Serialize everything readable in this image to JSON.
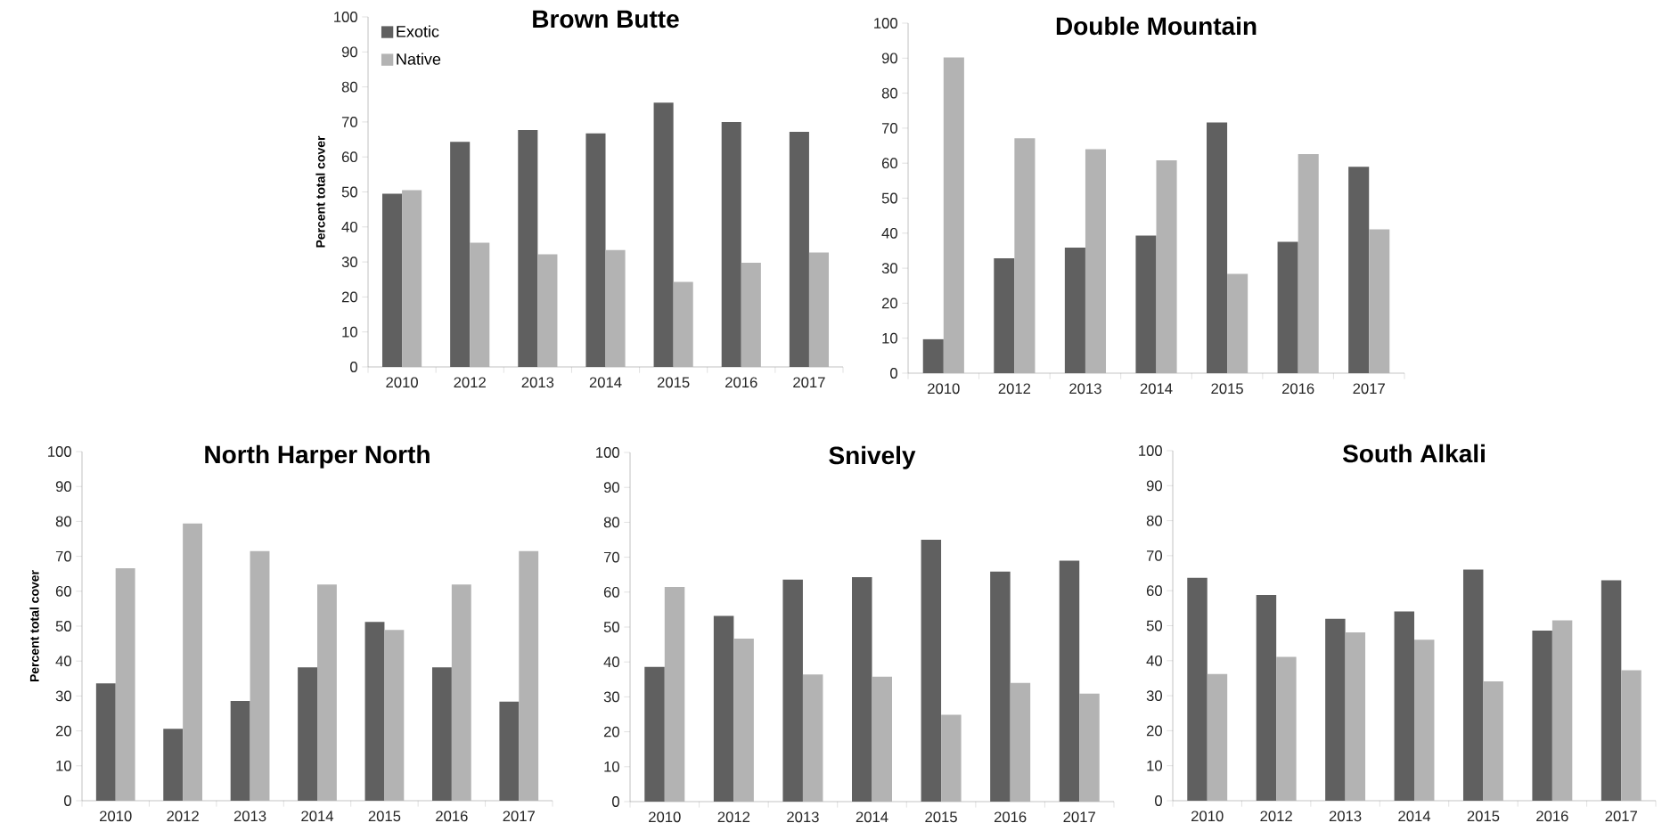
{
  "chart_data": [
    {
      "type": "bar",
      "title": "Brown Butte",
      "ylabel": "Percent total cover",
      "categories": [
        "2010",
        "2012",
        "2013",
        "2014",
        "2015",
        "2016",
        "2017"
      ],
      "ylim": [
        0,
        100
      ],
      "yticks": [
        0,
        10,
        20,
        30,
        40,
        50,
        60,
        70,
        80,
        90,
        100
      ],
      "legend": "top left",
      "series": [
        {
          "name": "Exotic",
          "color": "#606060",
          "values": [
            49.5,
            64.3,
            67.7,
            66.7,
            75.5,
            70,
            67.2
          ]
        },
        {
          "name": "Native",
          "color": "#b3b3b3",
          "values": [
            50.5,
            35.5,
            32.2,
            33.4,
            24.3,
            29.8,
            32.7
          ]
        }
      ]
    },
    {
      "type": "bar",
      "title": "Double Mountain",
      "categories": [
        "2010",
        "2012",
        "2013",
        "2014",
        "2015",
        "2016",
        "2017"
      ],
      "ylim": [
        0,
        100
      ],
      "yticks": [
        0,
        10,
        20,
        30,
        40,
        50,
        60,
        70,
        80,
        90,
        100
      ],
      "series": [
        {
          "color": "#606060",
          "values": [
            9.7,
            32.8,
            35.9,
            39.3,
            71.6,
            37.5,
            59
          ]
        },
        {
          "color": "#b3b3b3",
          "values": [
            90.2,
            67.1,
            64,
            60.8,
            28.4,
            62.6,
            41.1
          ]
        }
      ]
    },
    {
      "type": "bar",
      "title": "North Harper North",
      "ylabel": "Percent total cover",
      "categories": [
        "2010",
        "2012",
        "2013",
        "2014",
        "2015",
        "2016",
        "2017"
      ],
      "ylim": [
        0,
        100
      ],
      "yticks": [
        0,
        10,
        20,
        30,
        40,
        50,
        60,
        70,
        80,
        90,
        100
      ],
      "series": [
        {
          "color": "#606060",
          "values": [
            33.6,
            20.6,
            28.6,
            38.2,
            51.2,
            38.2,
            28.4
          ]
        },
        {
          "color": "#b3b3b3",
          "values": [
            66.6,
            79.4,
            71.5,
            61.9,
            48.9,
            61.9,
            71.5
          ]
        }
      ]
    },
    {
      "type": "bar",
      "title": "Snively",
      "categories": [
        "2010",
        "2012",
        "2013",
        "2014",
        "2015",
        "2016",
        "2017"
      ],
      "ylim": [
        0,
        100
      ],
      "yticks": [
        0,
        10,
        20,
        30,
        40,
        50,
        60,
        70,
        80,
        90,
        100
      ],
      "series": [
        {
          "color": "#606060",
          "values": [
            38.6,
            53.2,
            63.6,
            64.3,
            75,
            65.9,
            69
          ]
        },
        {
          "color": "#b3b3b3",
          "values": [
            61.5,
            46.7,
            36.4,
            35.8,
            24.9,
            34,
            30.9
          ]
        }
      ]
    },
    {
      "type": "bar",
      "title": "South Alkali",
      "categories": [
        "2010",
        "2012",
        "2013",
        "2014",
        "2015",
        "2016",
        "2017"
      ],
      "ylim": [
        0,
        100
      ],
      "yticks": [
        0,
        10,
        20,
        30,
        40,
        50,
        60,
        70,
        80,
        90,
        100
      ],
      "series": [
        {
          "color": "#606060",
          "values": [
            63.7,
            58.8,
            52,
            54.1,
            66,
            48.6,
            63
          ]
        },
        {
          "color": "#b3b3b3",
          "values": [
            36.2,
            41.1,
            48.1,
            46,
            34.1,
            51.5,
            37.3
          ]
        }
      ]
    }
  ]
}
